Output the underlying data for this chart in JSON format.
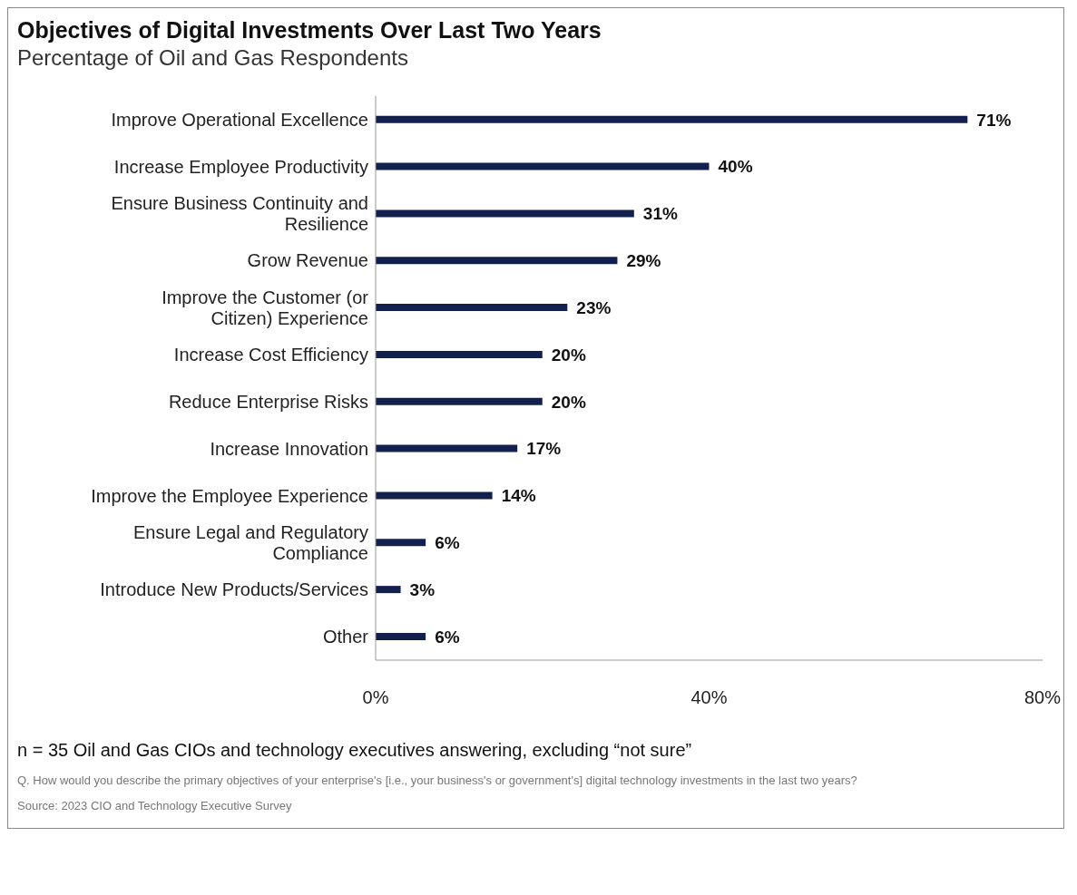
{
  "chart_data": {
    "type": "bar",
    "orientation": "horizontal",
    "title": "Objectives of Digital Investments Over Last Two Years",
    "subtitle": "Percentage of Oil and Gas Respondents",
    "categories": [
      "Improve Operational Excellence",
      "Increase Employee Productivity",
      "Ensure Business Continuity and Resilience",
      "Grow Revenue",
      "Improve the Customer (or Citizen) Experience",
      "Increase Cost Efficiency",
      "Reduce Enterprise Risks",
      "Increase Innovation",
      "Improve the Employee Experience",
      "Ensure Legal and Regulatory Compliance",
      "Introduce New Products/Services",
      "Other"
    ],
    "values": [
      71,
      40,
      31,
      29,
      23,
      20,
      20,
      17,
      14,
      6,
      3,
      6
    ],
    "value_labels": [
      "71%",
      "40%",
      "31%",
      "29%",
      "23%",
      "20%",
      "20%",
      "17%",
      "14%",
      "6%",
      "3%",
      "6%"
    ],
    "color": "#13204d",
    "xlim": [
      0,
      80
    ],
    "xticks": [
      {
        "value": 0,
        "label": "0%"
      },
      {
        "value": 40,
        "label": "40%"
      },
      {
        "value": 80,
        "label": "80%"
      }
    ],
    "grid": false,
    "annotations": [
      "n = 35 Oil and Gas CIOs and technology executives answering, excluding “not sure”",
      "Q. How would you describe the primary objectives of your enterprise's [i.e., your business's or government's] digital technology investments in the last two years?",
      "Source: 2023 CIO and Technology Executive Survey"
    ]
  }
}
